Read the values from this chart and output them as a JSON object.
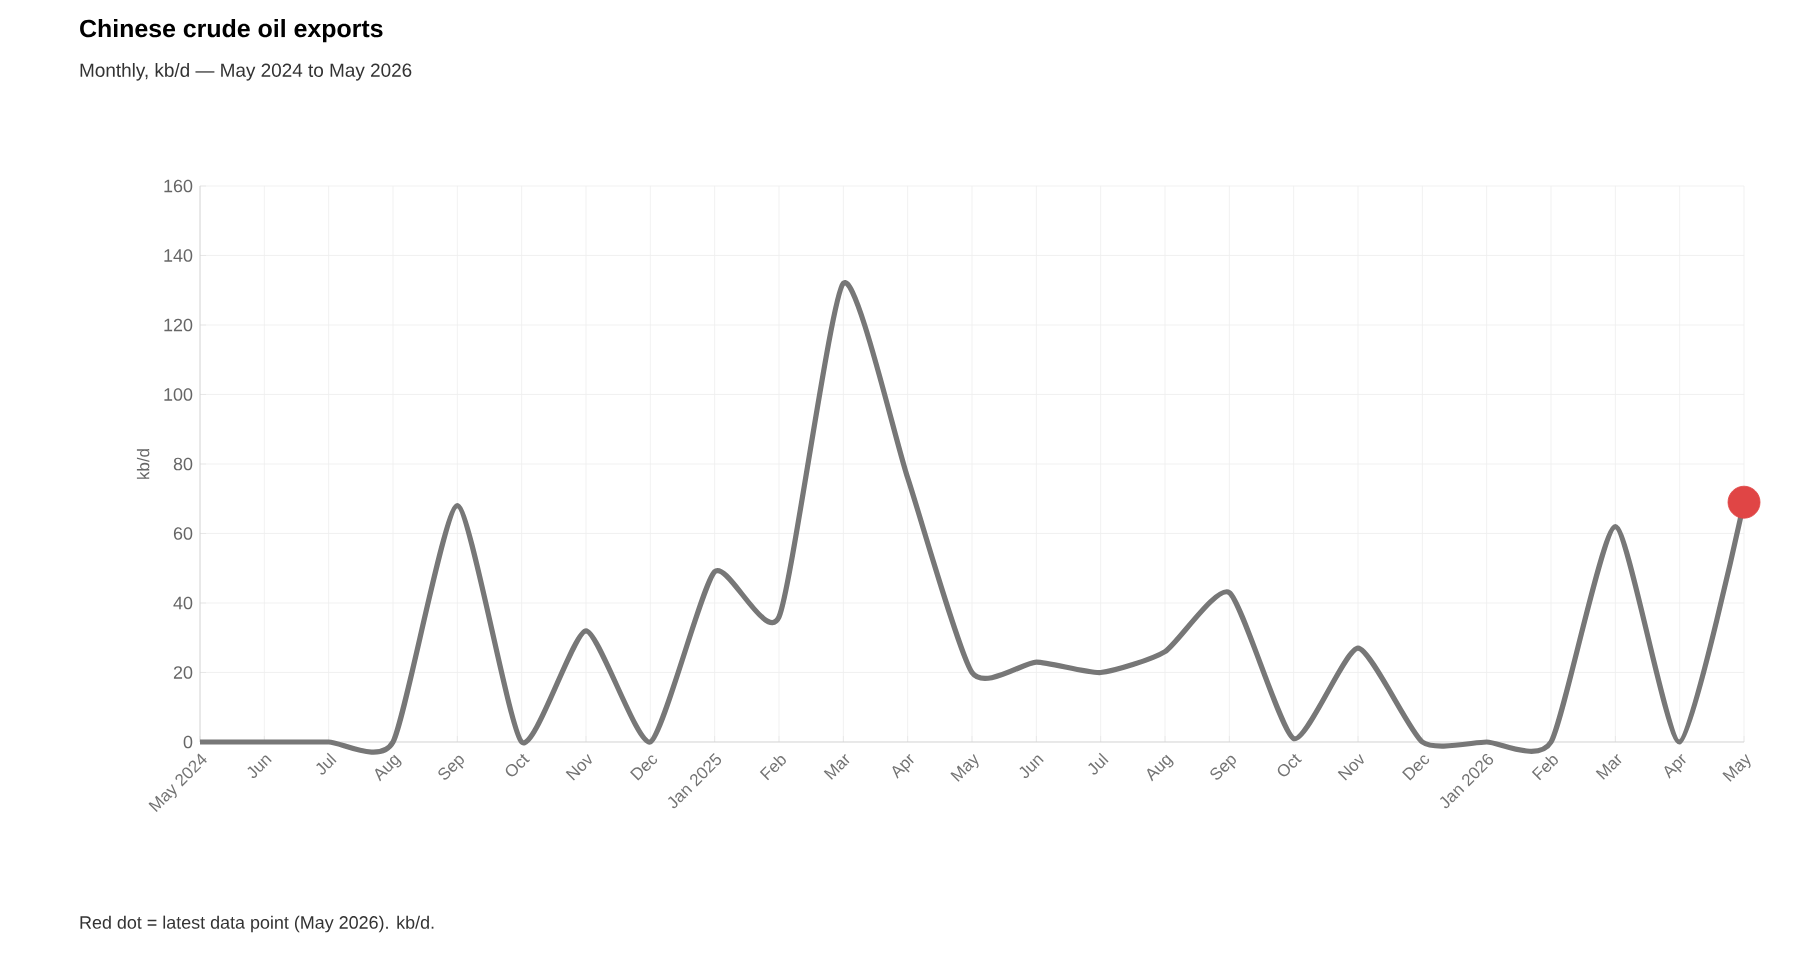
{
  "chart_data": {
    "type": "line",
    "title": "Chinese crude oil exports",
    "subtitle": "Monthly, kb/d — May 2024 to May 2026",
    "ylabel": "kb/d",
    "categories": [
      "May 2024",
      "Jun",
      "Jul",
      "Aug",
      "Sep",
      "Oct",
      "Nov",
      "Dec",
      "Jan 2025",
      "Feb",
      "Mar",
      "Apr",
      "May",
      "Jun",
      "Jul",
      "Aug",
      "Sep",
      "Oct",
      "Nov",
      "Dec",
      "Jan 2026",
      "Feb",
      "Mar",
      "Apr",
      "May"
    ],
    "series": [
      {
        "color": "#777777",
        "marker": "none",
        "values": [
          0,
          0,
          0,
          0,
          68,
          0,
          32,
          0,
          49,
          36,
          132,
          76,
          20,
          23,
          20,
          26,
          43,
          1,
          27,
          0,
          0,
          0,
          62,
          0,
          69
        ]
      },
      {
        "type": "scatter",
        "color": "#e04545",
        "marker": "circle",
        "values": [
          null,
          null,
          null,
          null,
          null,
          null,
          null,
          null,
          null,
          null,
          null,
          null,
          null,
          null,
          null,
          null,
          null,
          null,
          null,
          null,
          null,
          null,
          null,
          null,
          69
        ]
      }
    ],
    "ylim": [
      0,
      160
    ],
    "yticks": [
      0,
      20,
      40,
      60,
      80,
      100,
      120,
      140,
      160
    ],
    "grid": true,
    "annotations": [
      "Red dot = latest data point (May 2026). kb/d."
    ]
  }
}
